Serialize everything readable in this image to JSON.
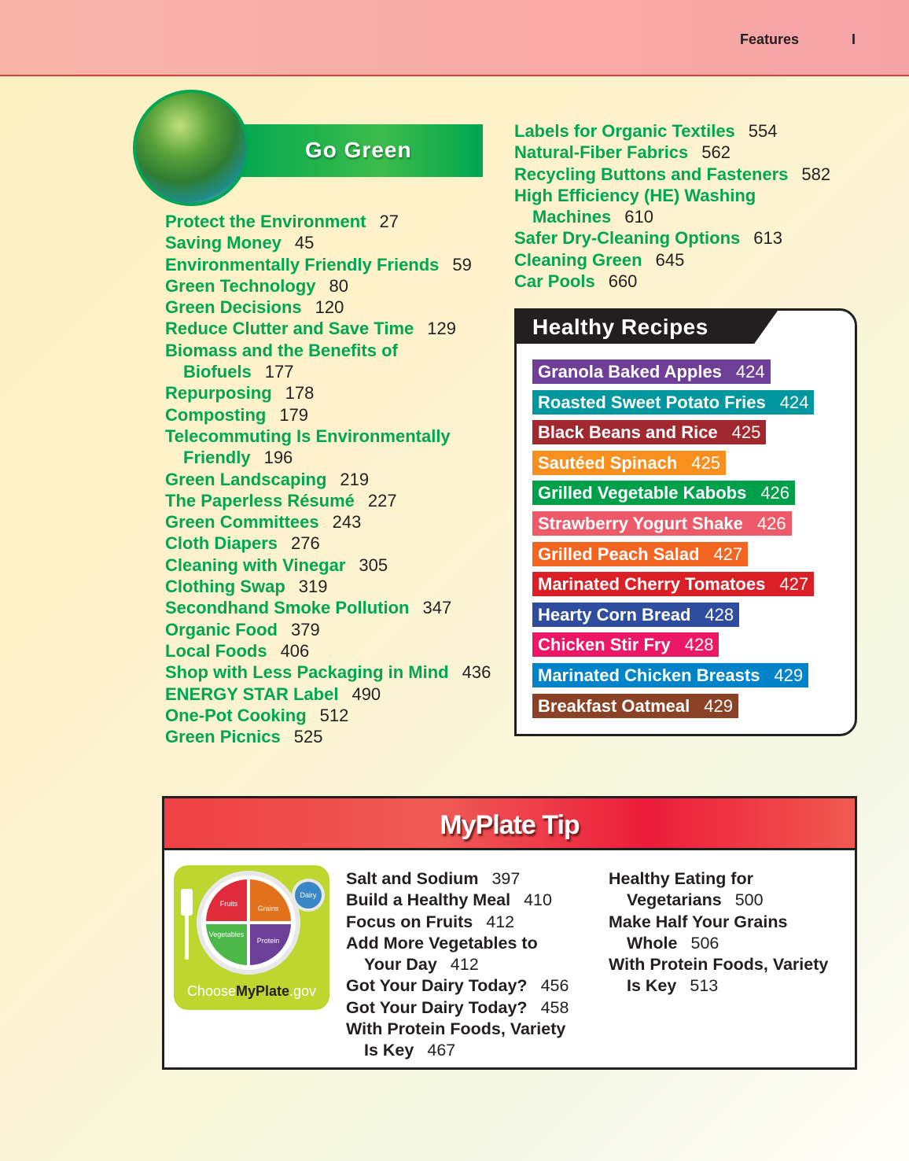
{
  "header": {
    "section": "Features",
    "page_marker": "I"
  },
  "go_green": {
    "title": "Go Green",
    "left_items": [
      {
        "title": "Protect the Environment",
        "page": "27"
      },
      {
        "title": "Saving Money",
        "page": "45"
      },
      {
        "title": "Environmentally Friendly Friends",
        "page": "59"
      },
      {
        "title": "Green Technology",
        "page": "80"
      },
      {
        "title": "Green Decisions",
        "page": "120"
      },
      {
        "title": "Reduce Clutter and Save Time",
        "page": "129"
      },
      {
        "title": "Biomass and the Benefits of\nBiofuels",
        "page": "177"
      },
      {
        "title": "Repurposing",
        "page": "178"
      },
      {
        "title": "Composting",
        "page": "179"
      },
      {
        "title": "Telecommuting Is Environmentally\nFriendly",
        "page": "196"
      },
      {
        "title": "Green Landscaping",
        "page": "219"
      },
      {
        "title": "The Paperless Résumé",
        "page": "227"
      },
      {
        "title": "Green Committees",
        "page": "243"
      },
      {
        "title": "Cloth Diapers",
        "page": "276"
      },
      {
        "title": "Cleaning with Vinegar",
        "page": "305"
      },
      {
        "title": "Clothing Swap",
        "page": "319"
      },
      {
        "title": "Secondhand Smoke Pollution",
        "page": "347"
      },
      {
        "title": "Organic Food",
        "page": "379"
      },
      {
        "title": "Local Foods",
        "page": "406"
      },
      {
        "title": "Shop with Less Packaging in Mind",
        "page": "436"
      },
      {
        "title": "ENERGY STAR Label",
        "page": "490"
      },
      {
        "title": "One-Pot Cooking",
        "page": "512"
      },
      {
        "title": "Green Picnics",
        "page": "525"
      }
    ],
    "right_items": [
      {
        "title": "Labels for Organic Textiles",
        "page": "554"
      },
      {
        "title": "Natural-Fiber Fabrics",
        "page": "562"
      },
      {
        "title": "Recycling Buttons and Fasteners",
        "page": "582"
      },
      {
        "title": "High Efficiency (HE) Washing\nMachines",
        "page": "610"
      },
      {
        "title": "Safer Dry-Cleaning Options",
        "page": "613"
      },
      {
        "title": "Cleaning Green",
        "page": "645"
      },
      {
        "title": "Car Pools",
        "page": "660"
      }
    ]
  },
  "healthy_recipes": {
    "title": "Healthy Recipes",
    "items": [
      {
        "title": "Granola Baked Apples",
        "page": "424",
        "color": "#6f3f98"
      },
      {
        "title": "Roasted Sweet Potato Fries",
        "page": "424",
        "color": "#00989e"
      },
      {
        "title": "Black Beans and Rice",
        "page": "425",
        "color": "#a1282f"
      },
      {
        "title": "Sautéed Spinach",
        "page": "425",
        "color": "#f7901e"
      },
      {
        "title": "Grilled Vegetable Kabobs",
        "page": "426",
        "color": "#00a04b"
      },
      {
        "title": "Strawberry Yogurt Shake",
        "page": "426",
        "color": "#ee5a6a"
      },
      {
        "title": "Grilled Peach Salad",
        "page": "427",
        "color": "#f26522"
      },
      {
        "title": "Marinated Cherry Tomatoes",
        "page": "427",
        "color": "#da1f26"
      },
      {
        "title": "Hearty Corn Bread",
        "page": "428",
        "color": "#2e4d9e"
      },
      {
        "title": "Chicken Stir Fry",
        "page": "428",
        "color": "#ec1766"
      },
      {
        "title": "Marinated Chicken Breasts",
        "page": "429",
        "color": "#0083c9"
      },
      {
        "title": "Breakfast Oatmeal",
        "page": "429",
        "color": "#8b4125"
      }
    ]
  },
  "myplate_tip": {
    "title": "MyPlate Tip",
    "logo": {
      "text": "ChooseMyPlate.gov",
      "sections": [
        "Fruits",
        "Grains",
        "Vegetables",
        "Protein",
        "Dairy"
      ]
    },
    "col1": [
      {
        "title": "Salt and Sodium",
        "page": "397"
      },
      {
        "title": "Build a Healthy Meal",
        "page": "410"
      },
      {
        "title": "Focus on Fruits",
        "page": "412"
      },
      {
        "title": "Add More Vegetables to\nYour Day",
        "page": "412"
      },
      {
        "title": "Got Your Dairy Today?",
        "page": "456"
      },
      {
        "title": "Got Your Dairy Today?",
        "page": "458"
      },
      {
        "title": "With Protein Foods, Variety\nIs Key",
        "page": "467"
      }
    ],
    "col2": [
      {
        "title": "Healthy Eating for\nVegetarians",
        "page": "500"
      },
      {
        "title": "Make Half Your Grains\nWhole",
        "page": "506"
      },
      {
        "title": "With Protein Foods, Variety\nIs Key",
        "page": "513"
      }
    ]
  }
}
